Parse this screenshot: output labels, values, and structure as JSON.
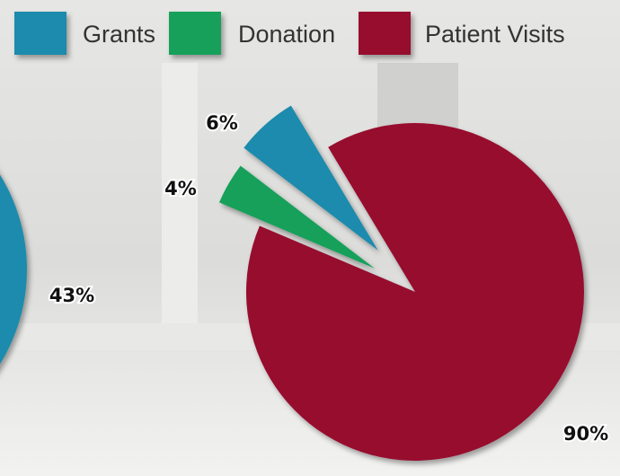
{
  "chart_data": [
    {
      "type": "pie",
      "categories": [
        null
      ],
      "values": [
        43
      ],
      "value_labels": [
        "43%"
      ],
      "colors": [
        "#1a8bad"
      ]
    },
    {
      "type": "pie",
      "categories": [
        "Grants",
        "Donation",
        "Patient Visits"
      ],
      "values": [
        6,
        4,
        90
      ],
      "value_labels": [
        "6%",
        "4%",
        "90%"
      ],
      "colors": [
        "#1a8bad",
        "#16a05a",
        "#970d2f"
      ],
      "legend": "top"
    }
  ]
}
